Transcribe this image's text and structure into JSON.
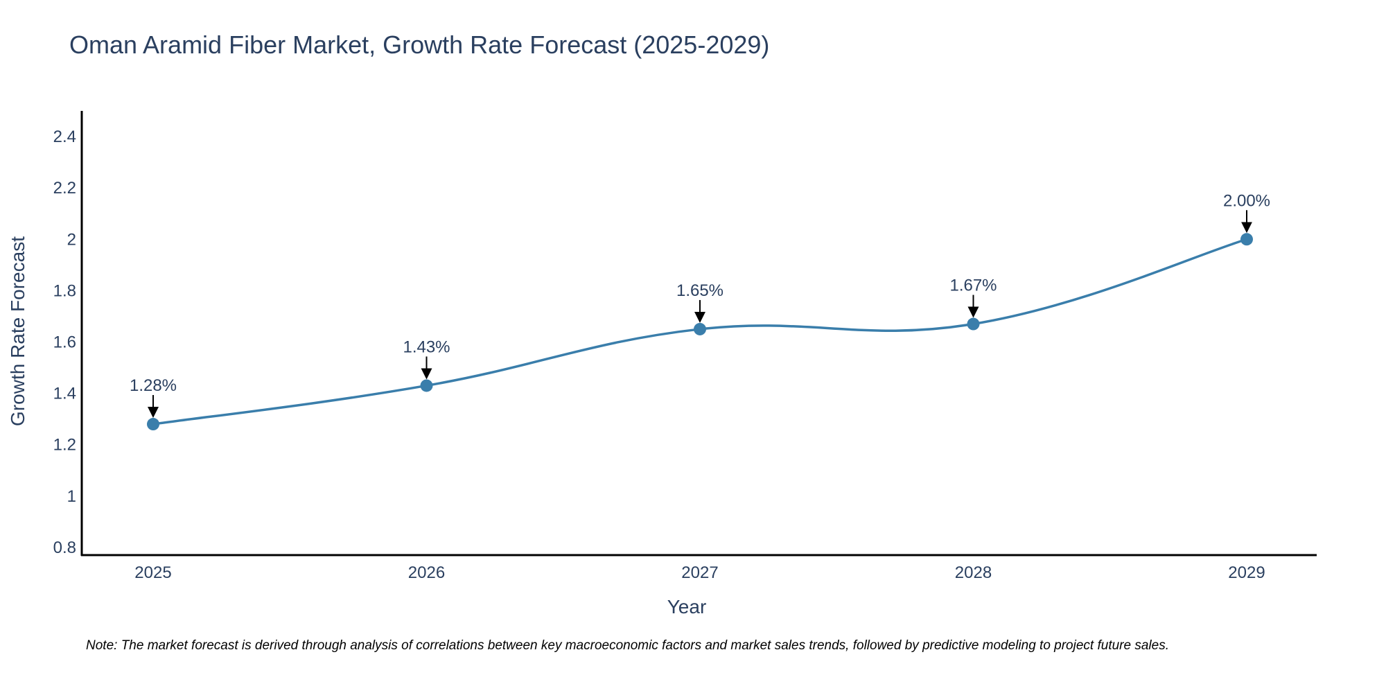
{
  "chart_data": {
    "type": "line",
    "title": "Oman Aramid Fiber Market, Growth Rate Forecast (2025-2029)",
    "xlabel": "Year",
    "ylabel": "Growth Rate Forecast",
    "categories": [
      "2025",
      "2026",
      "2027",
      "2028",
      "2029"
    ],
    "series": [
      {
        "name": "Growth Rate Forecast",
        "values": [
          1.28,
          1.43,
          1.65,
          1.67,
          2.0
        ],
        "labels": [
          "1.28%",
          "1.43%",
          "1.65%",
          "1.67%",
          "2.00%"
        ],
        "color": "#3a7eab"
      }
    ],
    "ylim": [
      0.77,
      2.5
    ],
    "yticks": [
      0.8,
      1,
      1.2,
      1.4,
      1.6,
      1.8,
      2,
      2.2,
      2.4
    ],
    "ytick_labels": [
      "0.8",
      "1",
      "1.2",
      "1.4",
      "1.6",
      "1.8",
      "2",
      "2.2",
      "2.4"
    ],
    "grid": false,
    "line_shape": "spline",
    "annotation_arrows": true
  },
  "note": "Note: The market forecast is derived through analysis of correlations between key macroeconomic factors and market sales trends, followed by predictive modeling to project future sales."
}
